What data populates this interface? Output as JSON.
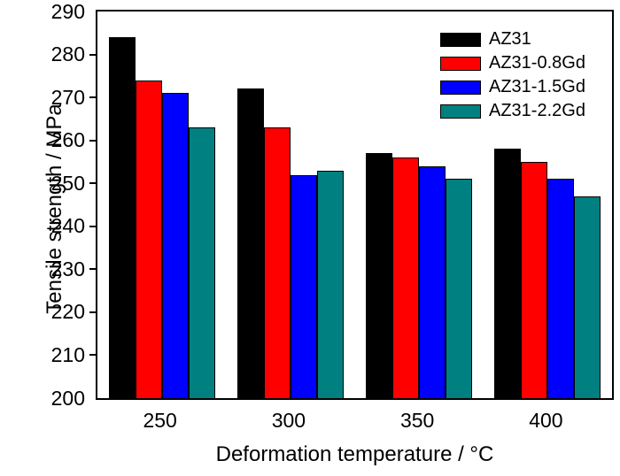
{
  "chart_data": {
    "type": "bar",
    "title": "",
    "xlabel": "Deformation temperature / °C",
    "ylabel": "Tensile strength / MPa",
    "categories": [
      "250",
      "300",
      "350",
      "400"
    ],
    "series": [
      {
        "name": "AZ31",
        "color": "#000000",
        "values": [
          284,
          272,
          257,
          258
        ]
      },
      {
        "name": "AZ31-0.8Gd",
        "color": "#ff0000",
        "values": [
          274,
          263,
          256,
          255
        ]
      },
      {
        "name": "AZ31-1.5Gd",
        "color": "#0000ff",
        "values": [
          271,
          252,
          254,
          251
        ]
      },
      {
        "name": "AZ31-2.2Gd",
        "color": "#008080",
        "values": [
          263,
          253,
          251,
          247
        ]
      }
    ],
    "ylim": [
      200,
      290
    ],
    "ytick_step": 10,
    "ytick_labels": [
      "200",
      "210",
      "220",
      "230",
      "240",
      "250",
      "260",
      "270",
      "280",
      "290"
    ],
    "legend_position": "top-right",
    "grid": false,
    "frame_color": "#000000",
    "background_color": "#ffffff"
  }
}
